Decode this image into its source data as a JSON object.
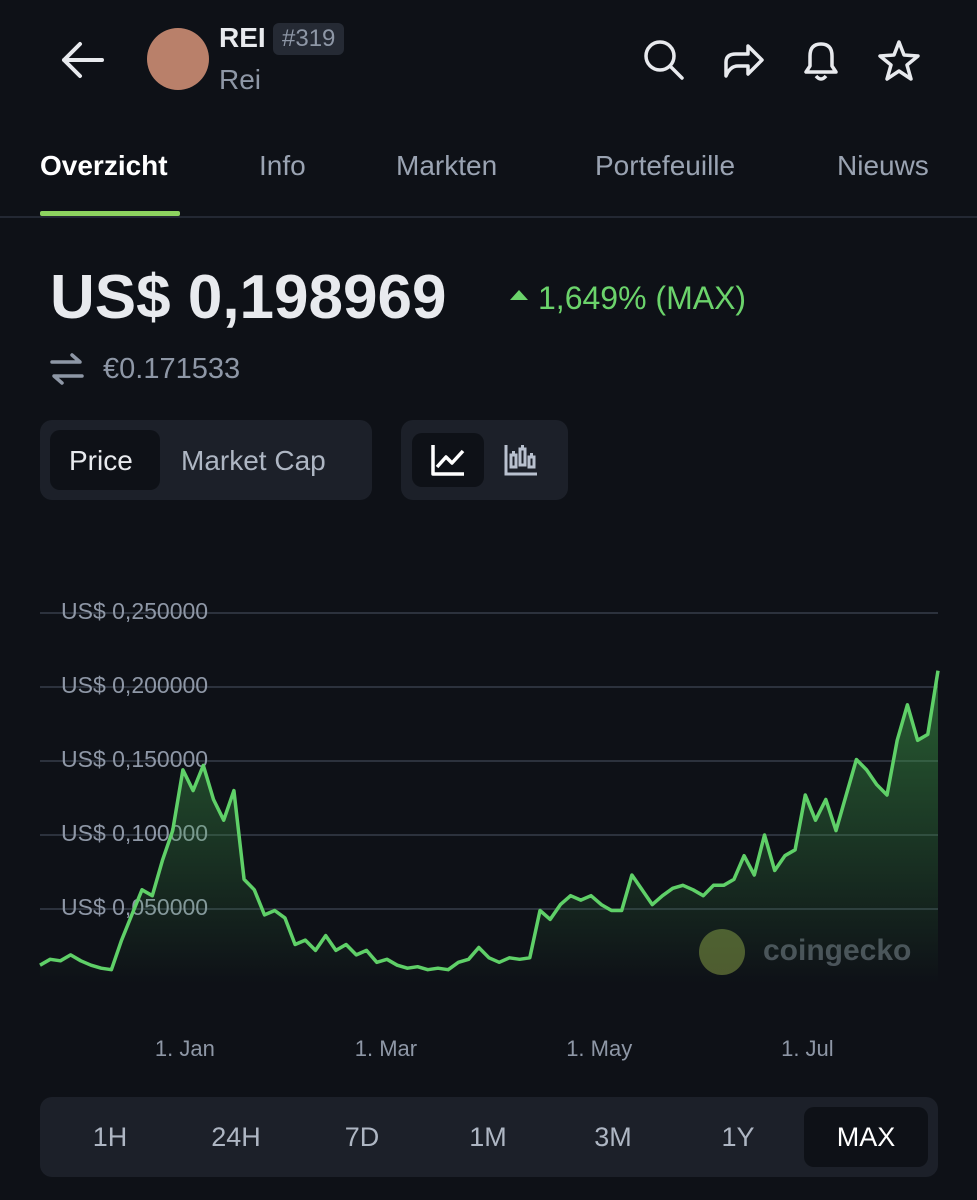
{
  "header": {
    "symbol": "REI",
    "rank": "#319",
    "name": "Rei"
  },
  "tabs": [
    "Overzicht",
    "Info",
    "Markten",
    "Portefeuille",
    "Nieuws"
  ],
  "price": {
    "value": "US$ 0,198969",
    "change": "1,649% (MAX)",
    "converted": "€0.171533"
  },
  "chart_toggle": [
    "Price",
    "Market Cap"
  ],
  "watermark": "coingecko",
  "time_ranges": [
    "1H",
    "24H",
    "7D",
    "1M",
    "3M",
    "1Y",
    "MAX"
  ],
  "chart_data": {
    "type": "line",
    "color": "#5fd068",
    "grid": true,
    "values": [
      0.012,
      0.016,
      0.015,
      0.019,
      0.015,
      0.012,
      0.01,
      0.009,
      0.029,
      0.046,
      0.063,
      0.059,
      0.083,
      0.103,
      0.144,
      0.13,
      0.147,
      0.124,
      0.11,
      0.13,
      0.07,
      0.063,
      0.046,
      0.049,
      0.044,
      0.026,
      0.029,
      0.022,
      0.032,
      0.022,
      0.026,
      0.019,
      0.022,
      0.014,
      0.016,
      0.012,
      0.01,
      0.011,
      0.009,
      0.01,
      0.009,
      0.014,
      0.016,
      0.024,
      0.017,
      0.014,
      0.017,
      0.016,
      0.017,
      0.049,
      0.043,
      0.053,
      0.059,
      0.056,
      0.059,
      0.053,
      0.049,
      0.049,
      0.073,
      0.063,
      0.053,
      0.059,
      0.064,
      0.066,
      0.063,
      0.059,
      0.066,
      0.066,
      0.07,
      0.086,
      0.073,
      0.1,
      0.076,
      0.086,
      0.09,
      0.127,
      0.11,
      0.124,
      0.103,
      0.127,
      0.151,
      0.144,
      0.134,
      0.127,
      0.164,
      0.188,
      0.164,
      0.168,
      0.211
    ],
    "xlim": [
      0,
      88
    ],
    "xticks": [
      {
        "value": 14.2,
        "label": "1. Jan"
      },
      {
        "value": 33.9,
        "label": "1. Mar"
      },
      {
        "value": 54.8,
        "label": "1. May"
      },
      {
        "value": 75.2,
        "label": "1. Jul"
      }
    ],
    "ylim": [
      0,
      0.25
    ],
    "yticks": [
      {
        "value": 0.05,
        "label": "US$ 0,050000"
      },
      {
        "value": 0.1,
        "label": "US$ 0,100000"
      },
      {
        "value": 0.15,
        "label": "US$ 0,150000"
      },
      {
        "value": 0.2,
        "label": "US$ 0,200000"
      },
      {
        "value": 0.25,
        "label": "US$ 0,250000"
      }
    ]
  }
}
